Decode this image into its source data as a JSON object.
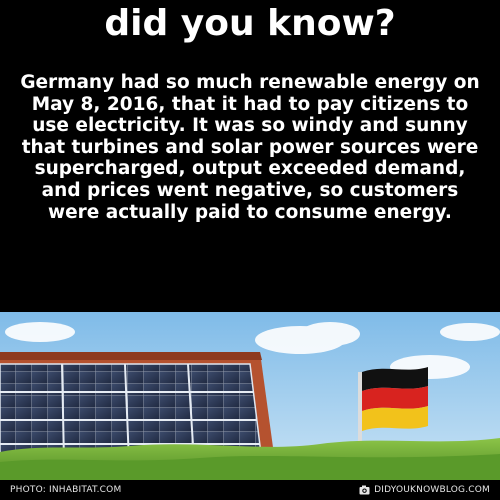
{
  "header": {
    "title": "did you know?"
  },
  "fact": {
    "text": "Germany had so much renewable energy on May 8, 2016, that it had to pay citizens to use electricity. It was so windy and sunny that turbines and solar power sources were supercharged, output exceeded demand, and prices went negative, so customers were actually paid to consume energy."
  },
  "footer": {
    "photo_credit": "PHOTO: INHABITAT.COM",
    "site": "DIDYOUKNOWBLOG.COM",
    "site_icon": "camera-icon"
  },
  "colors": {
    "background": "#000000",
    "text": "#ffffff",
    "sky": "#8fc4ea",
    "roof_tile": "#b5522f",
    "solar_panel": "#2a3550",
    "grass": "#6ea835",
    "flag_black": "#111111",
    "flag_red": "#d8231f",
    "flag_gold": "#f2c21b"
  }
}
